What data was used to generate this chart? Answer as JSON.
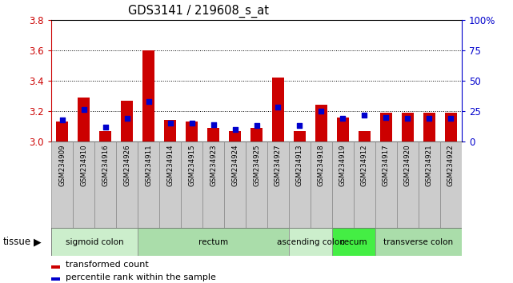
{
  "title": "GDS3141 / 219608_s_at",
  "samples": [
    "GSM234909",
    "GSM234910",
    "GSM234916",
    "GSM234926",
    "GSM234911",
    "GSM234914",
    "GSM234915",
    "GSM234923",
    "GSM234924",
    "GSM234925",
    "GSM234927",
    "GSM234913",
    "GSM234918",
    "GSM234919",
    "GSM234912",
    "GSM234917",
    "GSM234920",
    "GSM234921",
    "GSM234922"
  ],
  "transformed_count": [
    3.13,
    3.29,
    3.07,
    3.27,
    3.6,
    3.14,
    3.13,
    3.09,
    3.07,
    3.09,
    3.42,
    3.07,
    3.24,
    3.16,
    3.07,
    3.19,
    3.19,
    3.19,
    3.19
  ],
  "percentile_rank": [
    18,
    26,
    12,
    19,
    33,
    15,
    15,
    14,
    10,
    13,
    28,
    13,
    25,
    19,
    22,
    20,
    19,
    19,
    19
  ],
  "y_min": 3.0,
  "y_max": 3.8,
  "y_ticks_left": [
    3.0,
    3.2,
    3.4,
    3.6,
    3.8
  ],
  "y_ticks_right": [
    0,
    25,
    50,
    75,
    100
  ],
  "bar_color": "#cc0000",
  "dot_color": "#0000cc",
  "tissues": [
    {
      "label": "sigmoid colon",
      "start": 0,
      "end": 4,
      "color": "#cceecc"
    },
    {
      "label": "rectum",
      "start": 4,
      "end": 11,
      "color": "#aaddaa"
    },
    {
      "label": "ascending colon",
      "start": 11,
      "end": 13,
      "color": "#cceecc"
    },
    {
      "label": "cecum",
      "start": 13,
      "end": 15,
      "color": "#44ee44"
    },
    {
      "label": "transverse colon",
      "start": 15,
      "end": 19,
      "color": "#aaddaa"
    }
  ],
  "legend_bar_label": "transformed count",
  "legend_dot_label": "percentile rank within the sample",
  "tissue_label": "tissue",
  "left_axis_color": "#cc0000",
  "right_axis_color": "#0000cc",
  "sample_box_color": "#cccccc",
  "sample_box_edge": "#888888"
}
